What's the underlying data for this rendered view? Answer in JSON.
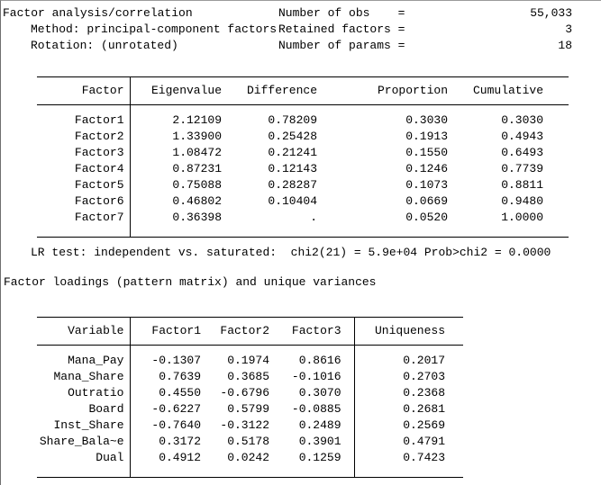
{
  "header": {
    "title": "Factor analysis/correlation",
    "method": "Method: principal-component factors",
    "rotation": "Rotation: (unrotated)",
    "stats": [
      {
        "label": "Number of obs    =",
        "value": "55,033"
      },
      {
        "label": "Retained factors =",
        "value": "3"
      },
      {
        "label": "Number of params =",
        "value": "18"
      }
    ]
  },
  "eigen_table": {
    "headers": [
      "Factor",
      "Eigenvalue",
      "Difference",
      "Proportion",
      "Cumulative"
    ],
    "rows": [
      [
        "Factor1",
        "2.12109",
        "0.78209",
        "0.3030",
        "0.3030"
      ],
      [
        "Factor2",
        "1.33900",
        "0.25428",
        "0.1913",
        "0.4943"
      ],
      [
        "Factor3",
        "1.08472",
        "0.21241",
        "0.1550",
        "0.6493"
      ],
      [
        "Factor4",
        "0.87231",
        "0.12143",
        "0.1246",
        "0.7739"
      ],
      [
        "Factor5",
        "0.75088",
        "0.28287",
        "0.1073",
        "0.8811"
      ],
      [
        "Factor6",
        "0.46802",
        "0.10404",
        "0.0669",
        "0.9480"
      ],
      [
        "Factor7",
        "0.36398",
        ".",
        "0.0520",
        "1.0000"
      ]
    ]
  },
  "lr_test": "LR test: independent vs. saturated:  chi2(21) = 5.9e+04 Prob>chi2 = 0.0000",
  "loadings_title": "Factor loadings (pattern matrix) and unique variances",
  "loadings_table": {
    "headers": [
      "Variable",
      "Factor1",
      "Factor2",
      "Factor3",
      "Uniqueness"
    ],
    "rows": [
      [
        "Mana_Pay",
        "-0.1307",
        "0.1974",
        "0.8616",
        "0.2017"
      ],
      [
        "Mana_Share",
        "0.7639",
        "0.3685",
        "-0.1016",
        "0.2703"
      ],
      [
        "Outratio",
        "0.4550",
        "-0.6796",
        "0.3070",
        "0.2368"
      ],
      [
        "Board",
        "-0.6227",
        "0.5799",
        "-0.0885",
        "0.2681"
      ],
      [
        "Inst_Share",
        "-0.7640",
        "-0.3122",
        "0.2489",
        "0.2569"
      ],
      [
        "Share_Bala~e",
        "0.3172",
        "0.5178",
        "0.3901",
        "0.4791"
      ],
      [
        "Dual",
        "0.4912",
        "0.0242",
        "0.1259",
        "0.7423"
      ]
    ]
  },
  "colors": {
    "background": "#ffffff",
    "text": "#000000",
    "rule": "#000000",
    "frame": "#6f6f6f"
  }
}
